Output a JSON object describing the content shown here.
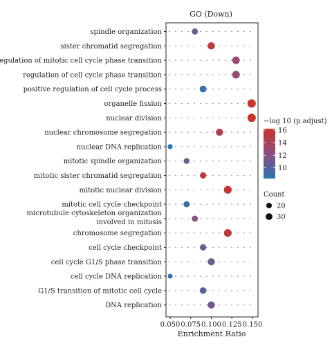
{
  "chart_data": {
    "type": "scatter",
    "title": "GO (Down)",
    "xlabel": "Enrichment Ratio",
    "ylabel": "",
    "xlim": [
      0.05,
      0.15
    ],
    "xticks": [
      "0.050",
      "0.075",
      "0.100",
      "0.125",
      "0.150"
    ],
    "xtick_values": [
      0.05,
      0.075,
      0.1,
      0.125,
      0.15
    ],
    "categories": [
      "spindle organization",
      "sister chromatid segregation",
      "regulation of mitotic cell cycle phase transition",
      "regulation of cell cycle phase transition",
      "positive regulation of cell cycle process",
      "organelle fission",
      "nuclear division",
      "nuclear chromosome segregation",
      "nuclear DNA replication",
      "mitotic spindle organization",
      "mitotic sister chromatid segregation",
      "mitotic nuclear division",
      "mitotic cell cycle checkpoint",
      [
        "microtubule cytoskeleton organization",
        "involved in mitosis"
      ],
      "chromosome segregation",
      "cell cycle checkpoint",
      "cell cycle G1/S phase transition",
      "cell cycle DNA replication",
      "G1/S transition of mitotic cell cycle",
      "DNA replication"
    ],
    "points": [
      {
        "x": 0.08,
        "log10_padj": 10.6,
        "count": 18
      },
      {
        "x": 0.1,
        "log10_padj": 15.3,
        "count": 25
      },
      {
        "x": 0.13,
        "log10_padj": 12.8,
        "count": 27
      },
      {
        "x": 0.13,
        "log10_padj": 12.9,
        "count": 28
      },
      {
        "x": 0.09,
        "log10_padj": 8.8,
        "count": 22
      },
      {
        "x": 0.149,
        "log10_padj": 16.0,
        "count": 33
      },
      {
        "x": 0.149,
        "log10_padj": 16.0,
        "count": 33
      },
      {
        "x": 0.11,
        "log10_padj": 14.2,
        "count": 25
      },
      {
        "x": 0.05,
        "log10_padj": 8.5,
        "count": 12
      },
      {
        "x": 0.07,
        "log10_padj": 11.0,
        "count": 16
      },
      {
        "x": 0.09,
        "log10_padj": 15.3,
        "count": 19
      },
      {
        "x": 0.12,
        "log10_padj": 15.6,
        "count": 29
      },
      {
        "x": 0.07,
        "log10_padj": 9.0,
        "count": 18
      },
      {
        "x": 0.08,
        "log10_padj": 11.8,
        "count": 18
      },
      {
        "x": 0.12,
        "log10_padj": 15.3,
        "count": 28
      },
      {
        "x": 0.09,
        "log10_padj": 11.0,
        "count": 19
      },
      {
        "x": 0.1,
        "log10_padj": 11.0,
        "count": 24
      },
      {
        "x": 0.05,
        "log10_padj": 8.6,
        "count": 11
      },
      {
        "x": 0.09,
        "log10_padj": 10.0,
        "count": 21
      },
      {
        "x": 0.1,
        "log10_padj": 11.2,
        "count": 25
      }
    ],
    "color_legend": {
      "title": "−log 10 (p.adjust)",
      "ticks": [
        16,
        14,
        12,
        10
      ],
      "range": [
        8.3,
        16.2
      ],
      "colors": [
        "#2a76b3",
        "#8e4e7e",
        "#cc3329"
      ]
    },
    "size_legend": {
      "title": "Count",
      "entries": [
        20,
        30
      ],
      "range": [
        10,
        34
      ]
    },
    "grid": "dotted",
    "legend_position": "right"
  }
}
